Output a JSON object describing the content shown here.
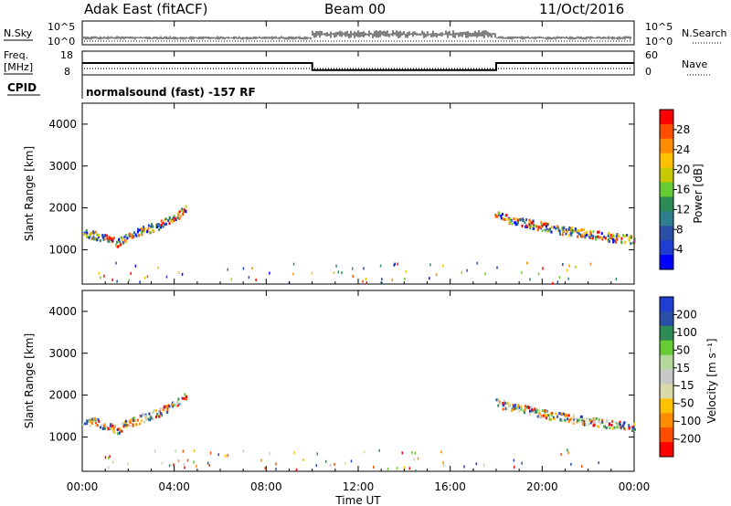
{
  "header": {
    "station": "Adak East (fitACF)",
    "beam": "Beam 00",
    "date": "11/Oct/2016"
  },
  "top_panels": {
    "nsky_label": "N.Sky",
    "nsky_ticks": [
      "10^5",
      "10^0"
    ],
    "nsearch_label": "N.Search",
    "nsearch_ticks": [
      "10^5",
      "10^0"
    ],
    "freq_label_1": "Freq.",
    "freq_label_2": "[MHz]",
    "freq_ticks": [
      "18",
      "8"
    ],
    "nave_label": "Nave",
    "nave_ticks": [
      "60",
      "0"
    ],
    "cpid_label": "CPID",
    "cpid_text": "normalsound (fast) -157 RF"
  },
  "chart_data": [
    {
      "type": "heatmap",
      "name": "power",
      "ylabel": "Slant Range [km]",
      "ylim": [
        180,
        4500
      ],
      "yticks": [
        1000,
        2000,
        3000,
        4000
      ],
      "xlim": [
        0,
        24
      ],
      "colorbar": {
        "label": "Power [dB]",
        "ticks": [
          "28",
          "24",
          "20",
          "16",
          "12",
          "8",
          "4"
        ],
        "colors": [
          "#ff0000",
          "#ff4d00",
          "#ff8c00",
          "#ffc000",
          "#c8c800",
          "#66cc33",
          "#2e8b57",
          "#2f7f8f",
          "#2a4fa6",
          "#1f3fd0",
          "#0000ff"
        ]
      },
      "echo_bands": [
        {
          "t": [
            0.0,
            0.5,
            1.0,
            1.5,
            2.0,
            2.5,
            3.0,
            3.5,
            4.0,
            4.5
          ],
          "range": [
            1400,
            1380,
            1300,
            1200,
            1350,
            1450,
            1550,
            1650,
            1780,
            2000
          ]
        },
        {
          "t": [
            17.9,
            18.5,
            19.0,
            19.5,
            20.0,
            20.5,
            21.0,
            21.5,
            22.0,
            22.5,
            23.0,
            23.5,
            24.0
          ],
          "range": [
            1850,
            1760,
            1700,
            1640,
            1580,
            1520,
            1480,
            1440,
            1400,
            1360,
            1320,
            1290,
            1270
          ]
        }
      ]
    },
    {
      "type": "heatmap",
      "name": "velocity",
      "ylabel": "Slant Range [km]",
      "ylim": [
        180,
        4500
      ],
      "yticks": [
        1000,
        2000,
        3000,
        4000
      ],
      "xlim": [
        0,
        24
      ],
      "colorbar": {
        "label": "Velocity [m s⁻¹]",
        "ticks": [
          "200",
          "100",
          "50",
          "15",
          "-15",
          "-50",
          "-100",
          "-200"
        ],
        "colors": [
          "#1f3fd0",
          "#2a4fa6",
          "#2e8b57",
          "#66cc33",
          "#b4d89c",
          "#c8c8c8",
          "#d8d8a8",
          "#ffc000",
          "#ff8c00",
          "#ff4d00",
          "#ff0000"
        ]
      },
      "echo_bands": [
        {
          "t": [
            0.0,
            0.5,
            1.0,
            1.5,
            2.0,
            2.5,
            3.0,
            3.5,
            4.0,
            4.5
          ],
          "range": [
            1400,
            1380,
            1300,
            1200,
            1350,
            1450,
            1550,
            1650,
            1780,
            2000
          ]
        },
        {
          "t": [
            17.9,
            18.5,
            19.0,
            19.5,
            20.0,
            20.5,
            21.0,
            21.5,
            22.0,
            22.5,
            23.0,
            23.5,
            24.0
          ],
          "range": [
            1850,
            1760,
            1700,
            1640,
            1580,
            1520,
            1480,
            1440,
            1400,
            1360,
            1320,
            1290,
            1270
          ]
        }
      ]
    }
  ],
  "frequency_mhz": {
    "t": [
      0,
      10,
      10,
      18,
      18,
      24
    ],
    "value": [
      13,
      13,
      10,
      10,
      13,
      13
    ]
  },
  "x_axis": {
    "ticks": [
      "00:00",
      "04:00",
      "08:00",
      "12:00",
      "16:00",
      "20:00",
      "00:00"
    ],
    "label": "Time UT"
  }
}
